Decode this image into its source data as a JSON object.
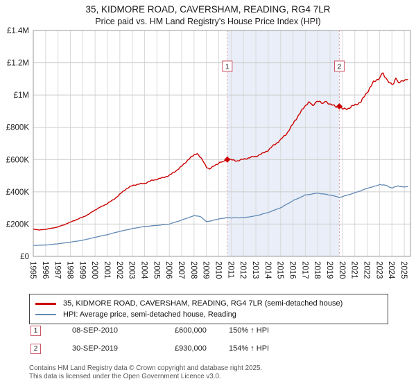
{
  "title": "35, KIDMORE ROAD, CAVERSHAM, READING, RG4 7LR",
  "subtitle": "Price paid vs. HM Land Registry's House Price Index (HPI)",
  "legend": {
    "items": [
      {
        "label": "35, KIDMORE ROAD, CAVERSHAM, READING, RG4 7LR (semi-detached house)"
      },
      {
        "label": "HPI: Average price, semi-detached house, Reading"
      }
    ]
  },
  "annotations": [
    {
      "num": "1",
      "date": "08-SEP-2010",
      "price": "£600,000",
      "hpi": "150% ↑ HPI"
    },
    {
      "num": "2",
      "date": "30-SEP-2019",
      "price": "£930,000",
      "hpi": "154% ↑ HPI"
    }
  ],
  "footer": {
    "line1": "Contains HM Land Registry data © Crown copyright and database right 2025.",
    "line2": "This data is licensed under the Open Government Licence v3.0."
  },
  "chart_data": {
    "type": "line",
    "title": "35, KIDMORE ROAD, CAVERSHAM, READING, RG4 7LR",
    "subtitle": "Price paid vs. HM Land Registry's House Price Index (HPI)",
    "x_range": [
      1995,
      2025.5
    ],
    "y_range": [
      0,
      1400000
    ],
    "grid": true,
    "legend_position": "bottom",
    "band_color": "#e9eef8",
    "x_ticks": [
      1995,
      1996,
      1997,
      1998,
      1999,
      2000,
      2001,
      2002,
      2003,
      2004,
      2005,
      2006,
      2007,
      2008,
      2009,
      2010,
      2011,
      2012,
      2013,
      2014,
      2015,
      2016,
      2017,
      2018,
      2019,
      2020,
      2021,
      2022,
      2023,
      2024,
      2025
    ],
    "y_ticks": [
      {
        "value": 0,
        "label": "£0"
      },
      {
        "value": 200000,
        "label": "£200K"
      },
      {
        "value": 400000,
        "label": "£400K"
      },
      {
        "value": 600000,
        "label": "£600K"
      },
      {
        "value": 800000,
        "label": "£800K"
      },
      {
        "value": 1000000,
        "label": "£1M"
      },
      {
        "value": 1200000,
        "label": "£1.2M"
      },
      {
        "value": 1400000,
        "label": "£1.4M"
      }
    ],
    "series": [
      {
        "name": "35, KIDMORE ROAD, CAVERSHAM, READING, RG4 7LR (semi-detached house)",
        "color": "#cc0000",
        "x": [
          1995,
          1995.5,
          1996,
          1996.5,
          1997,
          1997.5,
          1998,
          1998.5,
          1999,
          1999.5,
          2000,
          2000.5,
          2001,
          2001.5,
          2002,
          2002.5,
          2003,
          2003.5,
          2004,
          2004.5,
          2005,
          2005.5,
          2006,
          2006.5,
          2007,
          2007.5,
          2008,
          2008.25,
          2008.75,
          2009,
          2009.25,
          2009.75,
          2010,
          2010.69,
          2011,
          2011.5,
          2012,
          2012.5,
          2013,
          2013.5,
          2014,
          2014.5,
          2015,
          2015.5,
          2016,
          2016.5,
          2017,
          2017.25,
          2017.6,
          2018,
          2018.3,
          2018.6,
          2019,
          2019.5,
          2019.75,
          2020,
          2020.5,
          2021,
          2021.5,
          2022,
          2022.5,
          2023,
          2023.3,
          2023.6,
          2024,
          2024.3,
          2024.6,
          2025,
          2025.3
        ],
        "values": [
          170000,
          163000,
          168000,
          174000,
          183000,
          196000,
          212000,
          228000,
          243000,
          262000,
          288000,
          308000,
          328000,
          352000,
          385000,
          418000,
          438000,
          448000,
          452000,
          468000,
          478000,
          488000,
          502000,
          528000,
          558000,
          598000,
          628000,
          640000,
          588000,
          556000,
          540000,
          568000,
          578000,
          600000,
          598000,
          592000,
          602000,
          612000,
          620000,
          636000,
          658000,
          692000,
          722000,
          762000,
          820000,
          882000,
          932000,
          958000,
          938000,
          968000,
          948000,
          958000,
          942000,
          928000,
          930000,
          912000,
          918000,
          938000,
          958000,
          1018000,
          1078000,
          1108000,
          1138000,
          1088000,
          1062000,
          1098000,
          1078000,
          1088000,
          1098000
        ]
      },
      {
        "name": "HPI: Average price, semi-detached house, Reading",
        "color": "#6189b5",
        "x": [
          1995,
          1996,
          1997,
          1998,
          1999,
          2000,
          2001,
          2002,
          2003,
          2004,
          2005,
          2006,
          2007,
          2008,
          2008.5,
          2009,
          2009.5,
          2010,
          2010.69,
          2011,
          2012,
          2013,
          2014,
          2015,
          2016,
          2017,
          2018,
          2019,
          2019.75,
          2020,
          2021,
          2022,
          2022.8,
          2023,
          2023.5,
          2024,
          2024.5,
          2025,
          2025.3
        ],
        "values": [
          68000,
          70000,
          78000,
          88000,
          100000,
          118000,
          135000,
          155000,
          172000,
          185000,
          192000,
          200000,
          225000,
          252000,
          248000,
          215000,
          222000,
          232000,
          240000,
          238000,
          240000,
          251000,
          272000,
          301000,
          345000,
          380000,
          392000,
          380000,
          366000,
          370000,
          394000,
          421000,
          438000,
          446000,
          440000,
          424000,
          436000,
          430000,
          433000
        ]
      }
    ],
    "sales": [
      {
        "label": "1",
        "x": 2010.69,
        "value": 600000,
        "date": "08-SEP-2010"
      },
      {
        "label": "2",
        "x": 2019.75,
        "value": 930000,
        "date": "30-SEP-2019"
      }
    ]
  }
}
